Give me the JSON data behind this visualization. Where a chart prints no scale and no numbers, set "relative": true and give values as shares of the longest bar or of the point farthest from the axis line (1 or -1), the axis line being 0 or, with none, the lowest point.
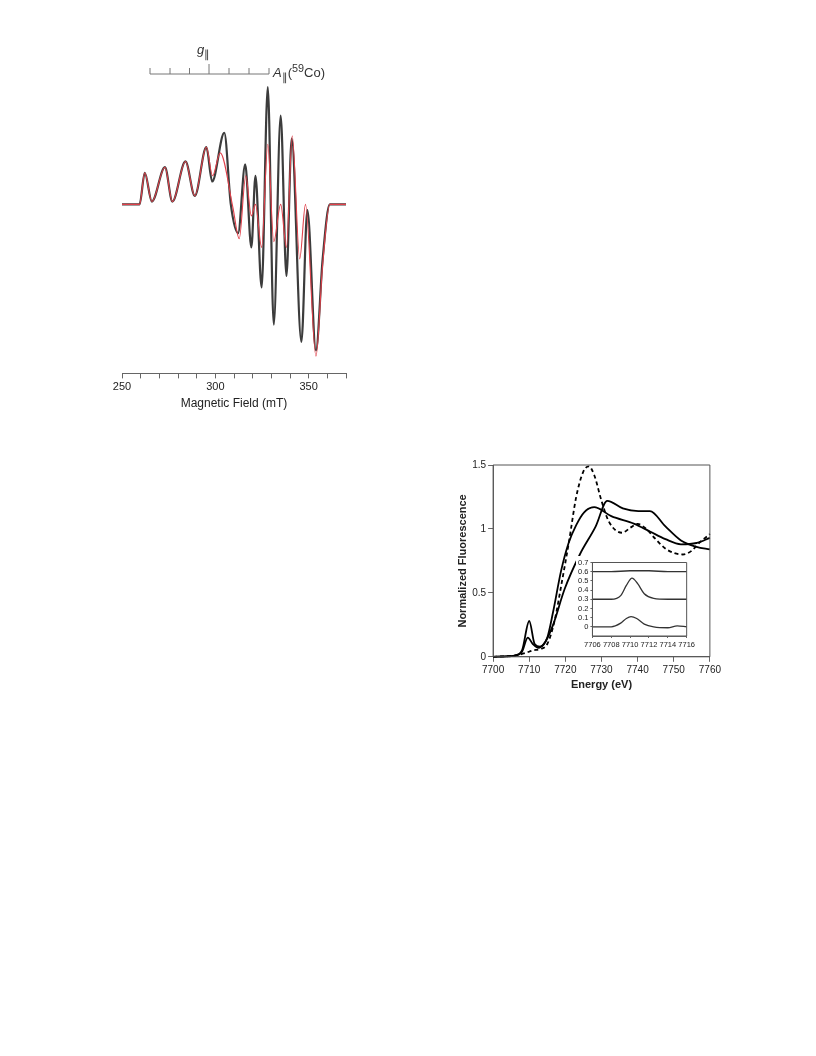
{
  "chart_data": [
    {
      "type": "line",
      "relative": true,
      "xlabel": "Magnetic Field (mT)",
      "xlim": [
        250,
        370
      ],
      "xticks": [
        250,
        {
          "value": 260,
          "label": null
        },
        {
          "value": 270,
          "label": null
        },
        {
          "value": 280,
          "label": null
        },
        {
          "value": 290,
          "label": null
        },
        300,
        {
          "value": 310,
          "label": null
        },
        {
          "value": 320,
          "label": null
        },
        {
          "value": 330,
          "label": null
        },
        {
          "value": 340,
          "label": null
        },
        350,
        {
          "value": 360,
          "label": null
        },
        {
          "value": 370,
          "label": null
        }
      ],
      "grid": false,
      "legend": false,
      "annotations": [
        "g$_{∥}$",
        "A$_{∥}$($^{59}$Co)"
      ],
      "series": [
        {
          "color": "#3c3c3c",
          "x": [
            250,
            259.4,
            262.2,
            266,
            273,
            277,
            284,
            289,
            295.2,
            298.3,
            304.8,
            308.3,
            312.2,
            316,
            319.3,
            321.5,
            324.8,
            328.1,
            331.3,
            335,
            338.1,
            340.9,
            346.1,
            349.3,
            353.9,
            357.5,
            361.3,
            370
          ],
          "values": [
            0.59,
            0.59,
            0.7,
            0.6,
            0.72,
            0.6,
            0.74,
            0.62,
            0.79,
            0.67,
            0.84,
            0.59,
            0.49,
            0.73,
            0.44,
            0.69,
            0.3,
            1,
            0.17,
            0.9,
            0.34,
            0.82,
            0.11,
            0.57,
            0.08,
            0.4,
            0.59,
            0.59
          ]
        },
        {
          "color": "#e0404a",
          "x": [
            250,
            259.4,
            262.2,
            266,
            273,
            277,
            284,
            289,
            295.2,
            298.5,
            302.6,
            309.4,
            312.8,
            316.3,
            319.3,
            321.5,
            324.8,
            328.1,
            331.3,
            335,
            338.1,
            341.2,
            345.2,
            348.3,
            353.9,
            357.5,
            361.3,
            370
          ],
          "values": [
            0.59,
            0.59,
            0.7,
            0.6,
            0.72,
            0.6,
            0.74,
            0.62,
            0.79,
            0.69,
            0.77,
            0.58,
            0.47,
            0.69,
            0.55,
            0.59,
            0.44,
            0.8,
            0.46,
            0.59,
            0.44,
            0.83,
            0.4,
            0.59,
            0.06,
            0.38,
            0.59,
            0.59
          ]
        }
      ]
    },
    {
      "type": "line",
      "xlabel": "Energy (eV)",
      "ylabel": "Normalized Fluorescence",
      "xlim": [
        7700,
        7760
      ],
      "xticks": [
        7700,
        7710,
        7720,
        7730,
        7740,
        7750,
        7760
      ],
      "ylim": [
        0,
        1.5
      ],
      "yticks": [
        0,
        0.5,
        1,
        1.5
      ],
      "grid": false,
      "legend": false,
      "series": [
        {
          "color": "#000000",
          "line_style": "dashed",
          "x": [
            7700,
            7706,
            7709,
            7711,
            7713,
            7715,
            7717,
            7719,
            7721,
            7723,
            7725,
            7726.5,
            7728,
            7730,
            7732,
            7735.7,
            7738,
            7740,
            7742,
            7745,
            7748,
            7752.5,
            7755,
            7757,
            7760
          ],
          "values": [
            0,
            0.01,
            0.03,
            0.05,
            0.06,
            0.1,
            0.28,
            0.58,
            0.9,
            1.25,
            1.45,
            1.49,
            1.42,
            1.22,
            1.06,
            0.97,
            1.01,
            1.04,
            1.01,
            0.92,
            0.84,
            0.8,
            0.83,
            0.89,
            0.96
          ]
        },
        {
          "color": "#000000",
          "x": [
            7700,
            7706,
            7708,
            7709.6,
            7711,
            7712.5,
            7714.5,
            7716.6,
            7719.8,
            7724,
            7728.4,
            7731.6,
            7735.9,
            7740.2,
            7743.4,
            7747.7,
            7752,
            7756.3,
            7760
          ],
          "values": [
            0,
            0.01,
            0.04,
            0.15,
            0.1,
            0.07,
            0.12,
            0.25,
            0.53,
            0.8,
            1.02,
            1.22,
            1.16,
            1.14,
            1.14,
            1.02,
            0.91,
            0.86,
            0.84
          ]
        },
        {
          "color": "#000000",
          "x": [
            7700,
            7706,
            7708,
            7710,
            7711.5,
            7713,
            7715,
            7716.6,
            7718.8,
            7720.9,
            7723,
            7725.2,
            7728,
            7732.7,
            7739.1,
            7743.4,
            7747.7,
            7752,
            7756.3,
            7760
          ],
          "values": [
            0,
            0.01,
            0.05,
            0.28,
            0.1,
            0.08,
            0.15,
            0.35,
            0.67,
            0.89,
            1.03,
            1.13,
            1.17,
            1.1,
            1.04,
            0.98,
            0.92,
            0.88,
            0.89,
            0.93
          ]
        }
      ]
    },
    {
      "type": "line",
      "xlim": [
        7706,
        7716
      ],
      "xticks": [
        7706,
        7708,
        7710,
        7712,
        7714,
        7716
      ],
      "ylim": [
        -0.1,
        0.7
      ],
      "yticks": [
        0,
        0.1,
        0.2,
        0.3,
        0.4,
        0.5,
        0.6,
        0.7
      ],
      "grid": false,
      "legend": false,
      "series": [
        {
          "color": "#333333",
          "x": [
            7706,
            7708,
            7710,
            7711,
            7712,
            7714,
            7716
          ],
          "values": [
            0.6,
            0.6,
            0.61,
            0.61,
            0.61,
            0.6,
            0.6
          ]
        },
        {
          "color": "#333333",
          "x": [
            7706,
            7708,
            7709,
            7709.6,
            7710.2,
            7710.8,
            7711.5,
            7712.5,
            7714,
            7716
          ],
          "values": [
            0.3,
            0.3,
            0.34,
            0.45,
            0.53,
            0.47,
            0.36,
            0.31,
            0.3,
            0.3
          ]
        },
        {
          "color": "#333333",
          "x": [
            7706,
            7708,
            7709,
            7709.6,
            7710.1,
            7710.7,
            7711.5,
            7712.5,
            7714,
            7715,
            7716
          ],
          "values": [
            0,
            0,
            0.04,
            0.09,
            0.11,
            0.09,
            0.03,
            0,
            -0.01,
            0.01,
            0
          ]
        }
      ]
    }
  ]
}
